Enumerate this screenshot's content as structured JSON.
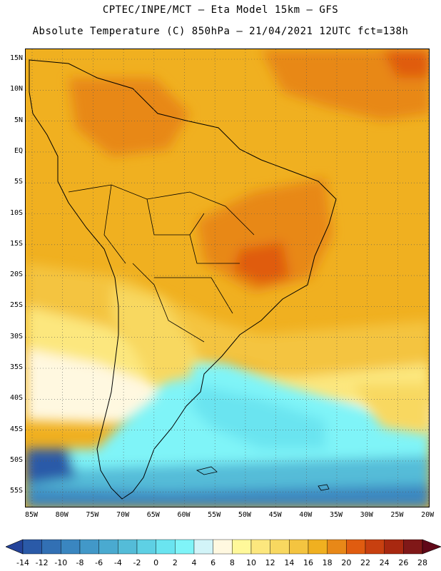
{
  "header": {
    "line1": "CPTEC/INPE/MCT –  Eta Model 15km – GFS",
    "line2": "Absolute Temperature (C) 850hPa – 21/04/2021 12UTC fct=138h"
  },
  "map": {
    "lat_labels": [
      "15N",
      "10N",
      "5N",
      "EQ",
      "5S",
      "10S",
      "15S",
      "20S",
      "25S",
      "30S",
      "35S",
      "40S",
      "45S",
      "50S",
      "55S"
    ],
    "lon_labels": [
      "85W",
      "80W",
      "75W",
      "70W",
      "65W",
      "60W",
      "55W",
      "50W",
      "45W",
      "40W",
      "35W",
      "30W",
      "25W",
      "20W"
    ]
  },
  "legend": {
    "ticks": [
      "-14",
      "-12",
      "-10",
      "-8",
      "-6",
      "-4",
      "-2",
      "0",
      "2",
      "4",
      "6",
      "8",
      "10",
      "12",
      "14",
      "16",
      "18",
      "20",
      "22",
      "24",
      "26",
      "28"
    ],
    "colors": [
      "#24439a",
      "#2a5aa8",
      "#3270b4",
      "#3a86c0",
      "#4298c8",
      "#4aaad0",
      "#54bcd8",
      "#5ed0e4",
      "#6ae4f0",
      "#7ff4f8",
      "#d2f4f8",
      "#fff8e0",
      "#fff89a",
      "#fce77e",
      "#f8d860",
      "#f4c440",
      "#f0b020",
      "#e88818",
      "#e05c10",
      "#c84010",
      "#a82810",
      "#801818",
      "#600818"
    ]
  },
  "chart_data": {
    "type": "heatmap",
    "title": "Absolute Temperature (C) 850hPa – 21/04/2021 12UTC fct=138h",
    "color_levels": [
      -14,
      -12,
      -10,
      -8,
      -6,
      -4,
      -2,
      0,
      2,
      4,
      6,
      8,
      10,
      12,
      14,
      16,
      18,
      20,
      22,
      24,
      26,
      28
    ],
    "lat_range": [
      "15N",
      "55S"
    ],
    "lon_range": [
      "85W",
      "20W"
    ],
    "grid": true
  }
}
